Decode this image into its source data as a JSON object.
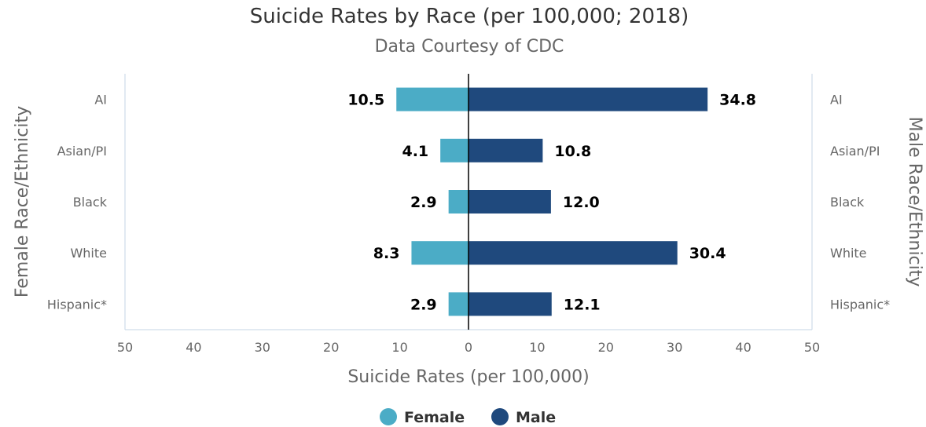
{
  "chart_data": {
    "type": "bar",
    "orientation": "horizontal",
    "layout": "diverging",
    "title": "Suicide Rates by Race (per 100,000; 2018)",
    "subtitle": "Data Courtesy of CDC",
    "xlabel": "Suicide Rates (per 100,000)",
    "ylabel_left": "Female Race/Ethnicity",
    "ylabel_right": "Male Race/Ethnicity",
    "categories": [
      "AI",
      "Asian/PI",
      "Black",
      "White",
      "Hispanic*"
    ],
    "x_ticks": [
      "50",
      "40",
      "30",
      "20",
      "10",
      "0",
      "10",
      "20",
      "30",
      "40",
      "50"
    ],
    "xlim": [
      -50,
      50
    ],
    "series": [
      {
        "name": "Female",
        "side": "left",
        "color": "#4bacc6",
        "values": [
          10.5,
          4.1,
          2.9,
          8.3,
          2.9
        ],
        "labels": [
          "10.5",
          "4.1",
          "2.9",
          "8.3",
          "2.9"
        ]
      },
      {
        "name": "Male",
        "side": "right",
        "color": "#1f497d",
        "values": [
          34.8,
          10.8,
          12.0,
          30.4,
          12.1
        ],
        "labels": [
          "34.8",
          "10.8",
          "12.0",
          "30.4",
          "12.1"
        ]
      }
    ],
    "legend_position": "bottom-center",
    "grid": false
  },
  "colors": {
    "axis_line": "#c6d6e6",
    "zero_line": "#000000"
  }
}
